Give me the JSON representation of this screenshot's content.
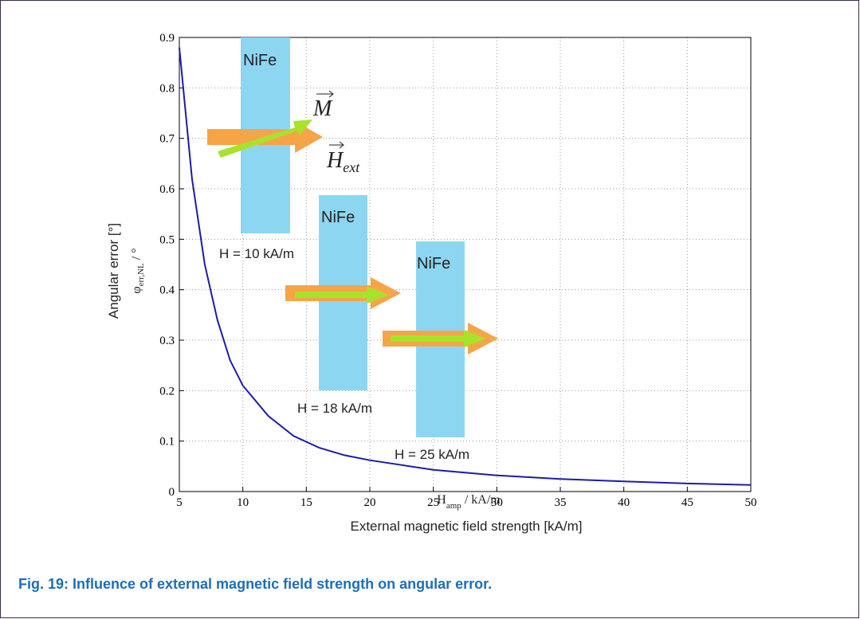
{
  "chart_data": {
    "type": "line",
    "x": [
      5,
      6,
      7,
      8,
      9,
      10,
      12,
      14,
      16,
      18,
      20,
      25,
      30,
      35,
      40,
      45,
      50
    ],
    "values": [
      0.88,
      0.62,
      0.45,
      0.34,
      0.26,
      0.21,
      0.15,
      0.11,
      0.087,
      0.072,
      0.062,
      0.043,
      0.032,
      0.025,
      0.02,
      0.016,
      0.013
    ],
    "color": "#1c1ca8",
    "xlim": [
      5,
      50
    ],
    "xticks": [
      5,
      10,
      15,
      20,
      25,
      30,
      35,
      40,
      45,
      50
    ],
    "ylim": [
      0,
      0.9
    ],
    "yticks": [
      0,
      0.1,
      0.2,
      0.3,
      0.4,
      0.5,
      0.6,
      0.7,
      0.8,
      0.9
    ],
    "grid": true,
    "y_label": "Angular error [°]",
    "y_label_symbol": "φ",
    "y_label_subscript": "err,NL",
    "y_label_unit": "/ °",
    "x_label_symbol": "H",
    "x_label_subscript": "amp",
    "x_label_unit": "/ kA/m",
    "x_label": "External magnetic field strength [kA/m]",
    "annotations": {
      "materials": [
        "NiFe",
        "NiFe",
        "NiFe"
      ],
      "fields": [
        "H = 10 kA/m",
        "H = 18 kA/m",
        "H = 25 kA/m"
      ],
      "magnetization": "M",
      "external_field": "H",
      "external_field_subscript": "ext"
    },
    "caption": "Fig. 19: Influence of external magnetic field strength on angular error."
  }
}
